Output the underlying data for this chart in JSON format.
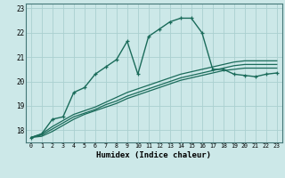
{
  "xlabel": "Humidex (Indice chaleur)",
  "bg_color": "#cce8e8",
  "grid_color": "#aad0d0",
  "line_color": "#1a6b5a",
  "xlim": [
    -0.5,
    23.5
  ],
  "ylim": [
    17.5,
    23.2
  ],
  "yticks": [
    18,
    19,
    20,
    21,
    22,
    23
  ],
  "xticks": [
    0,
    1,
    2,
    3,
    4,
    5,
    6,
    7,
    8,
    9,
    10,
    11,
    12,
    13,
    14,
    15,
    16,
    17,
    18,
    19,
    20,
    21,
    22,
    23
  ],
  "series": [
    {
      "x": [
        0,
        1,
        2,
        3,
        4,
        5,
        6,
        7,
        8,
        9,
        10,
        11,
        12,
        13,
        14,
        15,
        16,
        17,
        18,
        19,
        20,
        21,
        22,
        23
      ],
      "y": [
        17.7,
        17.85,
        18.45,
        18.55,
        19.55,
        19.75,
        20.3,
        20.6,
        20.9,
        21.65,
        20.3,
        21.85,
        22.15,
        22.45,
        22.6,
        22.6,
        22.0,
        20.5,
        20.5,
        20.3,
        20.25,
        20.2,
        20.3,
        20.35
      ],
      "marker": true,
      "lw": 1.0
    },
    {
      "x": [
        0,
        1,
        2,
        3,
        4,
        5,
        6,
        7,
        8,
        9,
        10,
        11,
        12,
        13,
        14,
        15,
        16,
        17,
        18,
        19,
        20,
        21,
        22,
        23
      ],
      "y": [
        17.7,
        17.75,
        17.95,
        18.2,
        18.45,
        18.65,
        18.8,
        18.95,
        19.1,
        19.3,
        19.45,
        19.6,
        19.75,
        19.9,
        20.05,
        20.15,
        20.25,
        20.35,
        20.45,
        20.5,
        20.55,
        20.55,
        20.55,
        20.55
      ],
      "marker": false,
      "lw": 0.9
    },
    {
      "x": [
        0,
        1,
        2,
        3,
        4,
        5,
        6,
        7,
        8,
        9,
        10,
        11,
        12,
        13,
        14,
        15,
        16,
        17,
        18,
        19,
        20,
        21,
        22,
        23
      ],
      "y": [
        17.7,
        17.8,
        18.05,
        18.3,
        18.55,
        18.7,
        18.85,
        19.05,
        19.2,
        19.4,
        19.55,
        19.7,
        19.85,
        20.0,
        20.15,
        20.25,
        20.35,
        20.45,
        20.55,
        20.65,
        20.7,
        20.7,
        20.7,
        20.7
      ],
      "marker": false,
      "lw": 0.9
    },
    {
      "x": [
        0,
        1,
        2,
        3,
        4,
        5,
        6,
        7,
        8,
        9,
        10,
        11,
        12,
        13,
        14,
        15,
        16,
        17,
        18,
        19,
        20,
        21,
        22,
        23
      ],
      "y": [
        17.7,
        17.85,
        18.15,
        18.4,
        18.65,
        18.8,
        18.95,
        19.15,
        19.35,
        19.55,
        19.7,
        19.85,
        20.0,
        20.15,
        20.3,
        20.4,
        20.5,
        20.6,
        20.7,
        20.8,
        20.85,
        20.85,
        20.85,
        20.85
      ],
      "marker": false,
      "lw": 0.9
    }
  ]
}
